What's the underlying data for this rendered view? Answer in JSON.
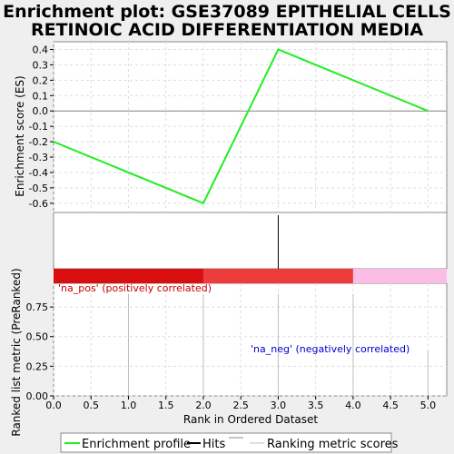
{
  "chart_data": {
    "type": "line",
    "title_lines": [
      "Enrichment plot: GSE37089 EPITHELIAL CELLS",
      "RETINOIC ACID DIFFERENTIATION MEDIA"
    ],
    "x": [
      0.0,
      2.0,
      3.0,
      5.0
    ],
    "es": [
      -0.2,
      -0.6,
      0.4,
      0.0
    ],
    "xlim": [
      0.0,
      5.25
    ],
    "es_ylim": [
      -0.66,
      0.45
    ],
    "es_yticks": [
      "0.4",
      "0.3",
      "0.2",
      "0.1",
      "0.0",
      "-0.1",
      "-0.2",
      "-0.3",
      "-0.4",
      "-0.5",
      "-0.6"
    ],
    "es_ytick_values": [
      0.4,
      0.3,
      0.2,
      0.1,
      0.0,
      -0.1,
      -0.2,
      -0.3,
      -0.4,
      -0.5,
      -0.6
    ],
    "es_ylabel": "Enrichment score (ES)",
    "hits": [
      3.0
    ],
    "bands": [
      {
        "from": 0.0,
        "to": 2.0,
        "color": "#d90f0f"
      },
      {
        "from": 2.0,
        "to": 4.0,
        "color": "#ee3b3b"
      },
      {
        "from": 4.0,
        "to": 5.25,
        "color": "#fbbde6"
      }
    ],
    "ranked_ylim": [
      0.0,
      0.95
    ],
    "ranked_yticks": [
      "0.00",
      "0.25",
      "0.50",
      "0.75"
    ],
    "ranked_ytick_values": [
      0.0,
      0.25,
      0.5,
      0.75
    ],
    "ranked_ylabel": "Ranked list metric (PreRanked)",
    "ranked_scores": [
      {
        "x": 1.0,
        "y": 0.86
      },
      {
        "x": 2.0,
        "y": 0.86
      },
      {
        "x": 3.0,
        "y": 0.86
      },
      {
        "x": 4.0,
        "y": 0.86
      },
      {
        "x": 5.0,
        "y": 0.38
      }
    ],
    "xticks": [
      "0.0",
      "0.5",
      "1.0",
      "1.5",
      "2.0",
      "2.5",
      "3.0",
      "3.5",
      "4.0",
      "4.5",
      "5.0"
    ],
    "xtick_values": [
      0.0,
      0.5,
      1.0,
      1.5,
      2.0,
      2.5,
      3.0,
      3.5,
      4.0,
      4.5,
      5.0
    ],
    "xlabel": "Rank in Ordered Dataset",
    "annotation_pos": "'na_pos' (positively correlated)",
    "annotation_neg": "'na_neg' (negatively correlated)",
    "legend": [
      "Enrichment profile",
      "Hits",
      "Ranking metric scores"
    ],
    "colors": {
      "es_line": "#22ee22",
      "hit": "#000000",
      "ranked": "#bfbfbf",
      "annot_pos": "#cc0000",
      "annot_neg": "#0000cc",
      "grid": "#dddddd",
      "zero": "#888888"
    }
  }
}
